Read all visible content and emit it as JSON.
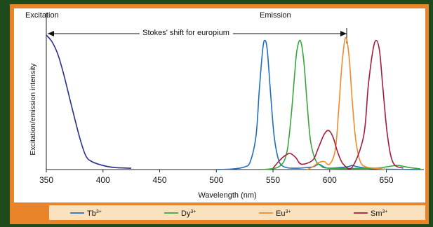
{
  "chart_data": {
    "type": "line",
    "xlabel": "Wavelength (nm)",
    "ylabel": "Excitation/emission intensity",
    "xlim": [
      350,
      680
    ],
    "ylim": [
      0,
      1.0
    ],
    "x_ticks": [
      350,
      400,
      450,
      500,
      550,
      600,
      650
    ],
    "grid": false,
    "legend_placement": "bottom",
    "annotations": {
      "excitation": "Excitation",
      "emission": "Emission",
      "stokes": "Stokes' shift for europium",
      "stokes_range": [
        350,
        615
      ]
    },
    "colors": {
      "background": "#1f4a1c",
      "frame": "#e9842a",
      "plot": "#ffffff",
      "legend_band": "#fbe2bf",
      "excitation": "#2a2f8f",
      "tb": "#1f6fc0",
      "dy": "#35a83c",
      "eu": "#f08a2a",
      "sm": "#a31d3a"
    },
    "legend": [
      {
        "ion": "Tb",
        "charge": "3+",
        "color": "#1f6fc0"
      },
      {
        "ion": "Dy",
        "charge": "3+",
        "color": "#35a83c"
      },
      {
        "ion": "Eu",
        "charge": "3+",
        "color": "#f08a2a"
      },
      {
        "ion": "Sm",
        "charge": "3+",
        "color": "#a31d3a"
      }
    ],
    "series": [
      {
        "key": "excitation",
        "color": "#2a2f8f",
        "x": [
          350,
          355,
          360,
          365,
          370,
          375,
          380,
          385,
          390,
          400,
          410,
          425
        ],
        "y": [
          1.0,
          0.95,
          0.86,
          0.72,
          0.55,
          0.38,
          0.22,
          0.1,
          0.06,
          0.03,
          0.015,
          0.01
        ]
      },
      {
        "key": "tb",
        "color": "#1f6fc0",
        "x": [
          500,
          515,
          525,
          530,
          535,
          538,
          541,
          543,
          545,
          548,
          551,
          555,
          560,
          570,
          585,
          590,
          595,
          600,
          615,
          620,
          625,
          640,
          680
        ],
        "y": [
          0,
          0.005,
          0.02,
          0.06,
          0.25,
          0.6,
          0.9,
          0.96,
          0.88,
          0.55,
          0.25,
          0.07,
          0.02,
          0.01,
          0.02,
          0.04,
          0.02,
          0.01,
          0.02,
          0.03,
          0.02,
          0.005,
          0
        ]
      },
      {
        "key": "dy",
        "color": "#35a83c",
        "x": [
          540,
          555,
          562,
          566,
          569,
          571,
          574,
          577,
          580,
          583,
          587,
          592,
          600,
          640,
          650,
          660,
          670,
          680
        ],
        "y": [
          0,
          0.02,
          0.12,
          0.4,
          0.7,
          0.88,
          0.96,
          0.82,
          0.5,
          0.22,
          0.08,
          0.03,
          0.01,
          0.01,
          0.02,
          0.03,
          0.015,
          0.005
        ]
      },
      {
        "key": "eu",
        "color": "#f08a2a",
        "x": [
          580,
          585,
          590,
          595,
          600,
          605,
          608,
          611,
          614,
          617,
          620,
          623,
          627,
          632,
          640,
          650
        ],
        "y": [
          0,
          0.02,
          0.05,
          0.06,
          0.04,
          0.15,
          0.45,
          0.8,
          0.98,
          0.85,
          0.5,
          0.22,
          0.06,
          0.02,
          0.01,
          0
        ]
      },
      {
        "key": "sm",
        "color": "#a31d3a",
        "x": [
          550,
          555,
          560,
          565,
          570,
          575,
          585,
          590,
          595,
          599,
          603,
          607,
          612,
          620,
          630,
          634,
          638,
          641,
          644,
          647,
          651,
          656,
          665
        ],
        "y": [
          0.01,
          0.06,
          0.1,
          0.12,
          0.09,
          0.04,
          0.07,
          0.16,
          0.26,
          0.29,
          0.24,
          0.13,
          0.04,
          0.02,
          0.25,
          0.62,
          0.88,
          0.96,
          0.88,
          0.6,
          0.25,
          0.05,
          0.01
        ]
      }
    ]
  }
}
